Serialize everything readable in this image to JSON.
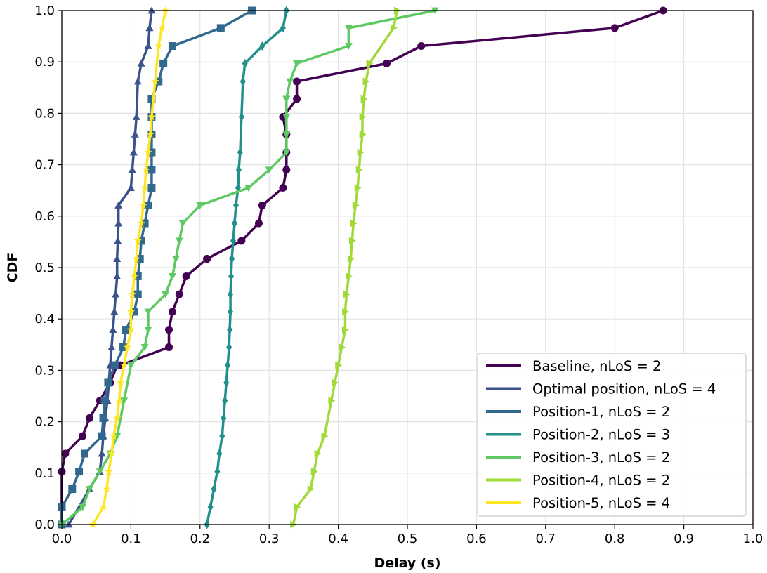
{
  "chart_data": {
    "type": "line",
    "title": "",
    "xlabel": "Delay (s)",
    "ylabel": "CDF",
    "xlim": [
      0.0,
      1.0
    ],
    "ylim": [
      0.0,
      1.0
    ],
    "xticks": [
      "0.0",
      "0.1",
      "0.2",
      "0.3",
      "0.4",
      "0.5",
      "0.6",
      "0.7",
      "0.8",
      "0.9",
      "1.0"
    ],
    "yticks": [
      "0.0",
      "0.1",
      "0.2",
      "0.3",
      "0.4",
      "0.5",
      "0.6",
      "0.7",
      "0.8",
      "0.9",
      "1.0"
    ],
    "grid": true,
    "legend_position": "bottom-right",
    "series": [
      {
        "name": "Baseline, nLoS = 2",
        "color": "#440154",
        "marker": "circle",
        "x": [
          0.0,
          0.0,
          0.005,
          0.03,
          0.04,
          0.055,
          0.07,
          0.08,
          0.085,
          0.155,
          0.155,
          0.16,
          0.17,
          0.18,
          0.21,
          0.21,
          0.26,
          0.285,
          0.29,
          0.32,
          0.325,
          0.325,
          0.325,
          0.32,
          0.34,
          0.34,
          0.47,
          0.52,
          0.8,
          0.87
        ],
        "y": [
          0.0,
          0.103,
          0.138,
          0.172,
          0.207,
          0.241,
          0.276,
          0.31,
          0.31,
          0.345,
          0.379,
          0.414,
          0.448,
          0.483,
          0.517,
          0.517,
          0.552,
          0.586,
          0.621,
          0.655,
          0.69,
          0.724,
          0.759,
          0.793,
          0.828,
          0.862,
          0.897,
          0.931,
          0.966,
          1.0
        ]
      },
      {
        "name": "Optimal position, nLoS = 4",
        "color": "#3b528b",
        "marker": "triangle-up",
        "x": [
          0.01,
          0.04,
          0.055,
          0.058,
          0.06,
          0.063,
          0.066,
          0.068,
          0.07,
          0.072,
          0.074,
          0.076,
          0.078,
          0.08,
          0.08,
          0.081,
          0.082,
          0.082,
          0.1,
          0.102,
          0.104,
          0.106,
          0.108,
          0.11,
          0.115,
          0.125,
          0.127,
          0.13
        ],
        "y": [
          0.0,
          0.069,
          0.103,
          0.138,
          0.172,
          0.207,
          0.241,
          0.276,
          0.31,
          0.345,
          0.379,
          0.414,
          0.448,
          0.483,
          0.517,
          0.552,
          0.586,
          0.621,
          0.655,
          0.69,
          0.724,
          0.759,
          0.793,
          0.862,
          0.897,
          0.931,
          0.966,
          1.0
        ]
      },
      {
        "name": "Position-1, nLoS = 2",
        "color": "#31688e",
        "marker": "square",
        "x": [
          0.0,
          0.0,
          0.015,
          0.025,
          0.033,
          0.058,
          0.06,
          0.062,
          0.067,
          0.077,
          0.089,
          0.093,
          0.105,
          0.11,
          0.11,
          0.113,
          0.115,
          0.12,
          0.125,
          0.13,
          0.13,
          0.13,
          0.13,
          0.13,
          0.13,
          0.14,
          0.147,
          0.16,
          0.23,
          0.275
        ],
        "y": [
          0.0,
          0.034,
          0.069,
          0.103,
          0.138,
          0.172,
          0.207,
          0.241,
          0.276,
          0.31,
          0.345,
          0.379,
          0.414,
          0.448,
          0.483,
          0.517,
          0.552,
          0.586,
          0.621,
          0.655,
          0.69,
          0.724,
          0.759,
          0.793,
          0.828,
          0.862,
          0.897,
          0.931,
          0.966,
          1.0
        ]
      },
      {
        "name": "Position-2, nLoS = 3",
        "color": "#21908d",
        "marker": "diamond",
        "x": [
          0.21,
          0.215,
          0.22,
          0.225,
          0.228,
          0.232,
          0.234,
          0.236,
          0.238,
          0.24,
          0.242,
          0.243,
          0.244,
          0.244,
          0.245,
          0.246,
          0.248,
          0.25,
          0.252,
          0.255,
          0.256,
          0.258,
          0.26,
          0.262,
          0.265,
          0.29,
          0.32,
          0.325
        ],
        "y": [
          0.0,
          0.034,
          0.069,
          0.103,
          0.138,
          0.172,
          0.207,
          0.241,
          0.276,
          0.31,
          0.345,
          0.379,
          0.414,
          0.448,
          0.483,
          0.517,
          0.552,
          0.586,
          0.621,
          0.655,
          0.69,
          0.724,
          0.793,
          0.862,
          0.897,
          0.931,
          0.966,
          1.0
        ]
      },
      {
        "name": "Position-3, nLoS = 2",
        "color": "#5ec962",
        "marker": "triangle-down",
        "x": [
          0.0,
          0.03,
          0.04,
          0.055,
          0.07,
          0.08,
          0.09,
          0.1,
          0.12,
          0.125,
          0.125,
          0.15,
          0.16,
          0.165,
          0.17,
          0.175,
          0.2,
          0.27,
          0.3,
          0.325,
          0.325,
          0.325,
          0.325,
          0.33,
          0.34,
          0.415,
          0.415,
          0.54
        ],
        "y": [
          0.0,
          0.034,
          0.069,
          0.103,
          0.138,
          0.172,
          0.241,
          0.31,
          0.345,
          0.379,
          0.414,
          0.448,
          0.483,
          0.517,
          0.552,
          0.586,
          0.621,
          0.655,
          0.69,
          0.724,
          0.759,
          0.793,
          0.828,
          0.862,
          0.897,
          0.931,
          0.966,
          1.0
        ]
      },
      {
        "name": "Position-4, nLoS = 2",
        "color": "#a0da39",
        "marker": "triangle-right",
        "x": [
          0.335,
          0.34,
          0.36,
          0.365,
          0.37,
          0.38,
          0.39,
          0.395,
          0.4,
          0.405,
          0.41,
          0.41,
          0.412,
          0.415,
          0.418,
          0.42,
          0.422,
          0.425,
          0.428,
          0.43,
          0.432,
          0.435,
          0.435,
          0.437,
          0.44,
          0.445,
          0.48,
          0.485
        ],
        "y": [
          0.0,
          0.034,
          0.069,
          0.103,
          0.138,
          0.172,
          0.241,
          0.276,
          0.31,
          0.345,
          0.379,
          0.414,
          0.448,
          0.483,
          0.517,
          0.552,
          0.586,
          0.621,
          0.655,
          0.69,
          0.724,
          0.759,
          0.793,
          0.828,
          0.862,
          0.897,
          0.966,
          1.0
        ]
      },
      {
        "name": "Position-5, nLoS = 4",
        "color": "#fde725",
        "marker": "star",
        "x": [
          0.045,
          0.06,
          0.065,
          0.068,
          0.072,
          0.075,
          0.08,
          0.083,
          0.085,
          0.09,
          0.095,
          0.1,
          0.1,
          0.102,
          0.105,
          0.108,
          0.11,
          0.115,
          0.118,
          0.12,
          0.122,
          0.125,
          0.128,
          0.13,
          0.135,
          0.14,
          0.145,
          0.15
        ],
        "y": [
          0.0,
          0.034,
          0.069,
          0.103,
          0.138,
          0.172,
          0.207,
          0.241,
          0.276,
          0.31,
          0.345,
          0.379,
          0.414,
          0.448,
          0.483,
          0.517,
          0.552,
          0.586,
          0.621,
          0.655,
          0.69,
          0.724,
          0.759,
          0.793,
          0.862,
          0.931,
          0.966,
          1.0
        ]
      }
    ]
  }
}
